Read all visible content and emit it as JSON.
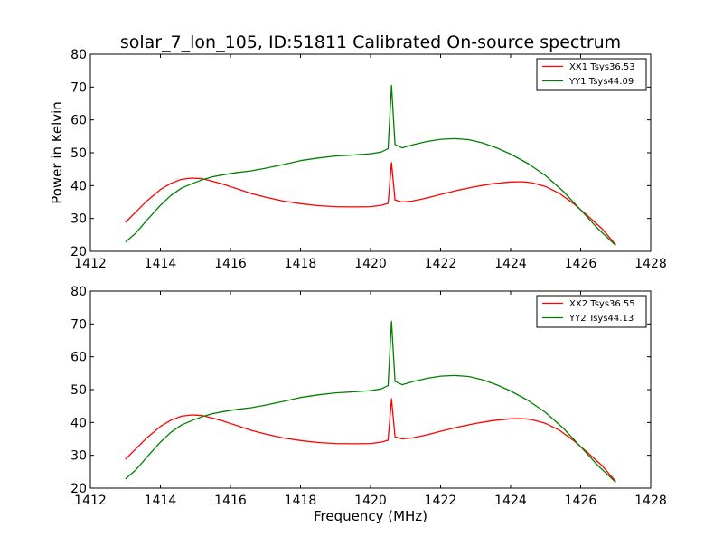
{
  "chart_data": [
    {
      "type": "line",
      "title": "solar_7_lon_105, ID:51811 Calibrated On-source spectrum",
      "xlabel": "",
      "ylabel": "Power in Kelvin",
      "xlim": [
        1412,
        1428
      ],
      "ylim": [
        20,
        80
      ],
      "xticks": [
        1412,
        1414,
        1416,
        1418,
        1420,
        1422,
        1424,
        1426,
        1428
      ],
      "yticks": [
        20,
        30,
        40,
        50,
        60,
        70,
        80
      ],
      "legend_position": "top-right",
      "grid": false,
      "series": [
        {
          "name": "XX1 Tsys36.53",
          "color": "#ff0000",
          "points": [
            [
              1413.0,
              28.8
            ],
            [
              1413.3,
              32.0
            ],
            [
              1413.6,
              35.2
            ],
            [
              1414.0,
              38.8
            ],
            [
              1414.3,
              40.7
            ],
            [
              1414.6,
              41.9
            ],
            [
              1414.9,
              42.3
            ],
            [
              1415.2,
              42.1
            ],
            [
              1415.5,
              41.3
            ],
            [
              1415.8,
              40.4
            ],
            [
              1416.2,
              39.0
            ],
            [
              1416.6,
              37.6
            ],
            [
              1417.0,
              36.5
            ],
            [
              1417.5,
              35.3
            ],
            [
              1418.0,
              34.5
            ],
            [
              1418.5,
              33.9
            ],
            [
              1419.0,
              33.6
            ],
            [
              1419.5,
              33.5
            ],
            [
              1420.0,
              33.6
            ],
            [
              1420.3,
              34.0
            ],
            [
              1420.5,
              34.6
            ],
            [
              1420.6,
              47.0
            ],
            [
              1420.7,
              35.6
            ],
            [
              1420.9,
              35.0
            ],
            [
              1421.2,
              35.3
            ],
            [
              1421.6,
              36.2
            ],
            [
              1422.0,
              37.3
            ],
            [
              1422.5,
              38.6
            ],
            [
              1423.0,
              39.7
            ],
            [
              1423.5,
              40.6
            ],
            [
              1424.0,
              41.1
            ],
            [
              1424.3,
              41.2
            ],
            [
              1424.6,
              40.9
            ],
            [
              1425.0,
              39.7
            ],
            [
              1425.4,
              37.6
            ],
            [
              1425.8,
              34.5
            ],
            [
              1426.2,
              30.8
            ],
            [
              1426.6,
              27.0
            ],
            [
              1427.0,
              22.0
            ]
          ]
        },
        {
          "name": "YY1 Tsys44.09",
          "color": "#008000",
          "points": [
            [
              1413.0,
              22.8
            ],
            [
              1413.3,
              25.6
            ],
            [
              1413.6,
              29.3
            ],
            [
              1414.0,
              34.0
            ],
            [
              1414.3,
              37.0
            ],
            [
              1414.6,
              39.2
            ],
            [
              1414.9,
              40.6
            ],
            [
              1415.2,
              41.8
            ],
            [
              1415.5,
              42.7
            ],
            [
              1415.8,
              43.3
            ],
            [
              1416.2,
              44.0
            ],
            [
              1416.6,
              44.5
            ],
            [
              1417.0,
              45.3
            ],
            [
              1417.5,
              46.4
            ],
            [
              1418.0,
              47.6
            ],
            [
              1418.5,
              48.4
            ],
            [
              1419.0,
              49.0
            ],
            [
              1419.5,
              49.3
            ],
            [
              1420.0,
              49.7
            ],
            [
              1420.3,
              50.2
            ],
            [
              1420.5,
              51.2
            ],
            [
              1420.6,
              70.5
            ],
            [
              1420.7,
              52.5
            ],
            [
              1420.9,
              51.5
            ],
            [
              1421.2,
              52.4
            ],
            [
              1421.6,
              53.4
            ],
            [
              1422.0,
              54.1
            ],
            [
              1422.4,
              54.3
            ],
            [
              1422.8,
              54.0
            ],
            [
              1423.2,
              53.0
            ],
            [
              1423.6,
              51.5
            ],
            [
              1424.0,
              49.6
            ],
            [
              1424.5,
              46.7
            ],
            [
              1425.0,
              43.0
            ],
            [
              1425.5,
              38.3
            ],
            [
              1426.0,
              32.6
            ],
            [
              1426.5,
              26.8
            ],
            [
              1427.0,
              21.8
            ]
          ]
        }
      ]
    },
    {
      "type": "line",
      "title": "",
      "xlabel": "Frequency (MHz)",
      "ylabel": "",
      "xlim": [
        1412,
        1428
      ],
      "ylim": [
        20,
        80
      ],
      "xticks": [
        1412,
        1414,
        1416,
        1418,
        1420,
        1422,
        1424,
        1426,
        1428
      ],
      "yticks": [
        20,
        30,
        40,
        50,
        60,
        70,
        80
      ],
      "legend_position": "top-right",
      "grid": false,
      "series": [
        {
          "name": "XX2 Tsys36.55",
          "color": "#ff0000",
          "points": [
            [
              1413.0,
              28.8
            ],
            [
              1413.3,
              32.0
            ],
            [
              1413.6,
              35.2
            ],
            [
              1414.0,
              38.8
            ],
            [
              1414.3,
              40.7
            ],
            [
              1414.6,
              41.9
            ],
            [
              1414.9,
              42.3
            ],
            [
              1415.2,
              42.1
            ],
            [
              1415.5,
              41.3
            ],
            [
              1415.8,
              40.4
            ],
            [
              1416.2,
              39.0
            ],
            [
              1416.6,
              37.6
            ],
            [
              1417.0,
              36.5
            ],
            [
              1417.5,
              35.3
            ],
            [
              1418.0,
              34.5
            ],
            [
              1418.5,
              33.9
            ],
            [
              1419.0,
              33.6
            ],
            [
              1419.5,
              33.5
            ],
            [
              1420.0,
              33.6
            ],
            [
              1420.3,
              34.0
            ],
            [
              1420.5,
              34.6
            ],
            [
              1420.6,
              47.2
            ],
            [
              1420.7,
              35.6
            ],
            [
              1420.9,
              35.0
            ],
            [
              1421.2,
              35.3
            ],
            [
              1421.6,
              36.2
            ],
            [
              1422.0,
              37.3
            ],
            [
              1422.5,
              38.6
            ],
            [
              1423.0,
              39.7
            ],
            [
              1423.5,
              40.6
            ],
            [
              1424.0,
              41.1
            ],
            [
              1424.3,
              41.2
            ],
            [
              1424.6,
              40.9
            ],
            [
              1425.0,
              39.7
            ],
            [
              1425.4,
              37.6
            ],
            [
              1425.8,
              34.5
            ],
            [
              1426.2,
              30.8
            ],
            [
              1426.6,
              27.0
            ],
            [
              1427.0,
              22.0
            ]
          ]
        },
        {
          "name": "YY2 Tsys44.13",
          "color": "#008000",
          "points": [
            [
              1413.0,
              22.8
            ],
            [
              1413.3,
              25.6
            ],
            [
              1413.6,
              29.3
            ],
            [
              1414.0,
              34.0
            ],
            [
              1414.3,
              37.0
            ],
            [
              1414.6,
              39.2
            ],
            [
              1414.9,
              40.6
            ],
            [
              1415.2,
              41.8
            ],
            [
              1415.5,
              42.7
            ],
            [
              1415.8,
              43.3
            ],
            [
              1416.2,
              44.0
            ],
            [
              1416.6,
              44.5
            ],
            [
              1417.0,
              45.3
            ],
            [
              1417.5,
              46.4
            ],
            [
              1418.0,
              47.6
            ],
            [
              1418.5,
              48.4
            ],
            [
              1419.0,
              49.0
            ],
            [
              1419.5,
              49.3
            ],
            [
              1420.0,
              49.7
            ],
            [
              1420.3,
              50.2
            ],
            [
              1420.5,
              51.2
            ],
            [
              1420.6,
              70.8
            ],
            [
              1420.7,
              52.5
            ],
            [
              1420.9,
              51.5
            ],
            [
              1421.2,
              52.4
            ],
            [
              1421.6,
              53.4
            ],
            [
              1422.0,
              54.1
            ],
            [
              1422.4,
              54.3
            ],
            [
              1422.8,
              54.0
            ],
            [
              1423.2,
              53.0
            ],
            [
              1423.6,
              51.5
            ],
            [
              1424.0,
              49.6
            ],
            [
              1424.5,
              46.7
            ],
            [
              1425.0,
              43.0
            ],
            [
              1425.5,
              38.3
            ],
            [
              1426.0,
              32.6
            ],
            [
              1426.5,
              26.8
            ],
            [
              1427.0,
              21.8
            ]
          ]
        }
      ]
    }
  ]
}
